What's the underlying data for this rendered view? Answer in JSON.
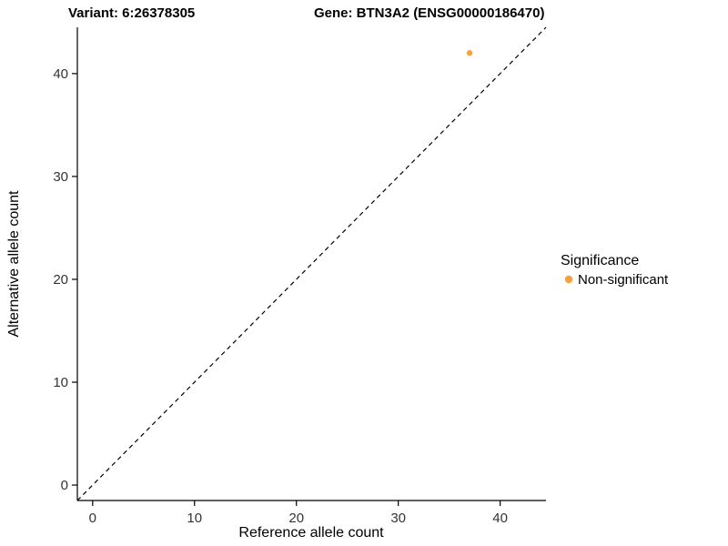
{
  "chart_data": {
    "type": "scatter",
    "titles": {
      "left": "Variant: 6:26378305",
      "right": "Gene: BTN3A2 (ENSG00000186470)"
    },
    "xlabel": "Reference allele count",
    "ylabel": "Alternative allele count",
    "xlim": [
      -1.5,
      44.5
    ],
    "ylim": [
      -1.5,
      44.5
    ],
    "xticks": [
      0,
      10,
      20,
      30,
      40
    ],
    "yticks": [
      0,
      10,
      20,
      30,
      40
    ],
    "grid": "off",
    "identity_line": {
      "style": "dashed",
      "from_xy": [
        -1.5,
        -1.5
      ],
      "to_xy": [
        44.5,
        44.5
      ],
      "color": "#000000"
    },
    "points": [
      {
        "x": 37,
        "y": 42,
        "series": "Non-significant",
        "color": "#F9A03C"
      }
    ],
    "legend": {
      "position": "right",
      "title": "Significance",
      "entries": [
        {
          "label": "Non-significant",
          "color": "#F9A03C"
        }
      ]
    }
  }
}
